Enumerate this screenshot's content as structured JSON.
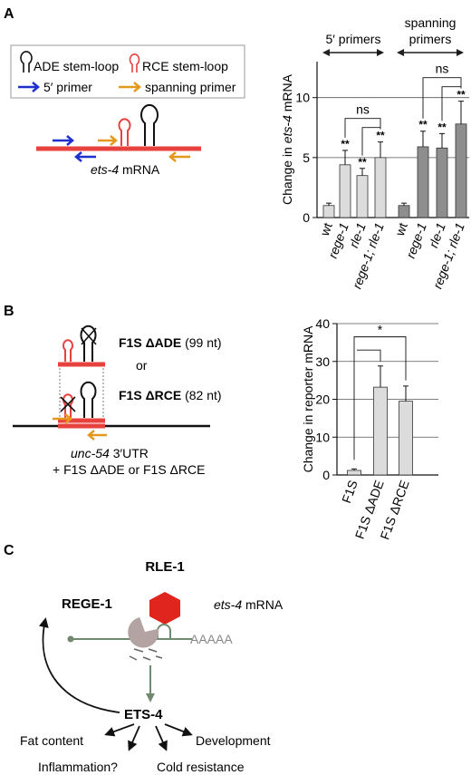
{
  "panels": {
    "a": "A",
    "b": "B",
    "c": "C"
  },
  "panel_a": {
    "legend": {
      "ade": "ADE stem-loop",
      "rce": "RCE stem-loop",
      "five_primer": "5′ primer",
      "spanning_primer": "spanning primer"
    },
    "mrna_italic": "ets-4",
    "mrna_suffix": " mRNA"
  },
  "panel_b": {
    "construct_1_bold": "F1S ΔADE",
    "construct_1_suffix": " (99 nt)",
    "or_text": "or",
    "construct_2_bold": "F1S ΔRCE",
    "construct_2_suffix": " (82 nt)",
    "utr_italic": "unc-54",
    "utr_suffix": " 3′UTR",
    "utr_line2": "+ F1S ΔADE or F1S ΔRCE"
  },
  "panel_c": {
    "rle1": "RLE-1",
    "rege1": "REGE-1",
    "mrna_italic": "ets-4",
    "mrna_suffix": " mRNA",
    "polya": "AAAAA",
    "ets4": "ETS-4",
    "outcomes": {
      "fat": "Fat content",
      "development": "Development",
      "inflammation": "Inflammation?",
      "cold": "Cold resistance"
    }
  },
  "colors": {
    "red": "#e8423f",
    "blue": "#1e2fd0",
    "orange": "#e39a1c",
    "light_bar": "#dcdcdc",
    "dark_bar": "#8e8e8e",
    "green": "#6f8a6f",
    "rege_gray": "#b3a3a3"
  },
  "chart_data": [
    {
      "type": "bar",
      "ylabel_prefix": "Change in ",
      "ylabel_italic": "ets-4",
      "ylabel_suffix": " mRNA",
      "ylim": [
        0,
        13
      ],
      "yticks": [
        0,
        5,
        10
      ],
      "grid": true,
      "groups": [
        {
          "label_line1": "5′ primers",
          "label_line2": "",
          "categories": [
            "wt",
            "rege-1",
            "rle-1",
            "rege-1; rle-1"
          ],
          "values": [
            1.0,
            4.4,
            3.5,
            5.0
          ],
          "errors": [
            0.2,
            1.2,
            0.6,
            1.3
          ],
          "significance": [
            "",
            "**",
            "**",
            "**"
          ],
          "bracket": "ns"
        },
        {
          "label_line1": "spanning",
          "label_line2": "primers",
          "categories": [
            "wt",
            "rege-1",
            "rle-1",
            "rege-1; rle-1"
          ],
          "values": [
            1.0,
            5.9,
            5.8,
            7.8
          ],
          "errors": [
            0.2,
            1.3,
            1.2,
            1.9
          ],
          "significance": [
            "",
            "**",
            "**",
            "**"
          ],
          "bracket": "ns"
        }
      ]
    },
    {
      "type": "bar",
      "ylabel": "Change in reporter mRNA",
      "ylim": [
        0,
        40
      ],
      "yticks": [
        0,
        10,
        20,
        30,
        40
      ],
      "grid": true,
      "categories": [
        "F1S",
        "F1S ΔADE",
        "F1S ΔRCE"
      ],
      "values": [
        1.2,
        23.2,
        19.5
      ],
      "errors": [
        0.4,
        5.6,
        4.0
      ],
      "bracket": "*"
    }
  ]
}
